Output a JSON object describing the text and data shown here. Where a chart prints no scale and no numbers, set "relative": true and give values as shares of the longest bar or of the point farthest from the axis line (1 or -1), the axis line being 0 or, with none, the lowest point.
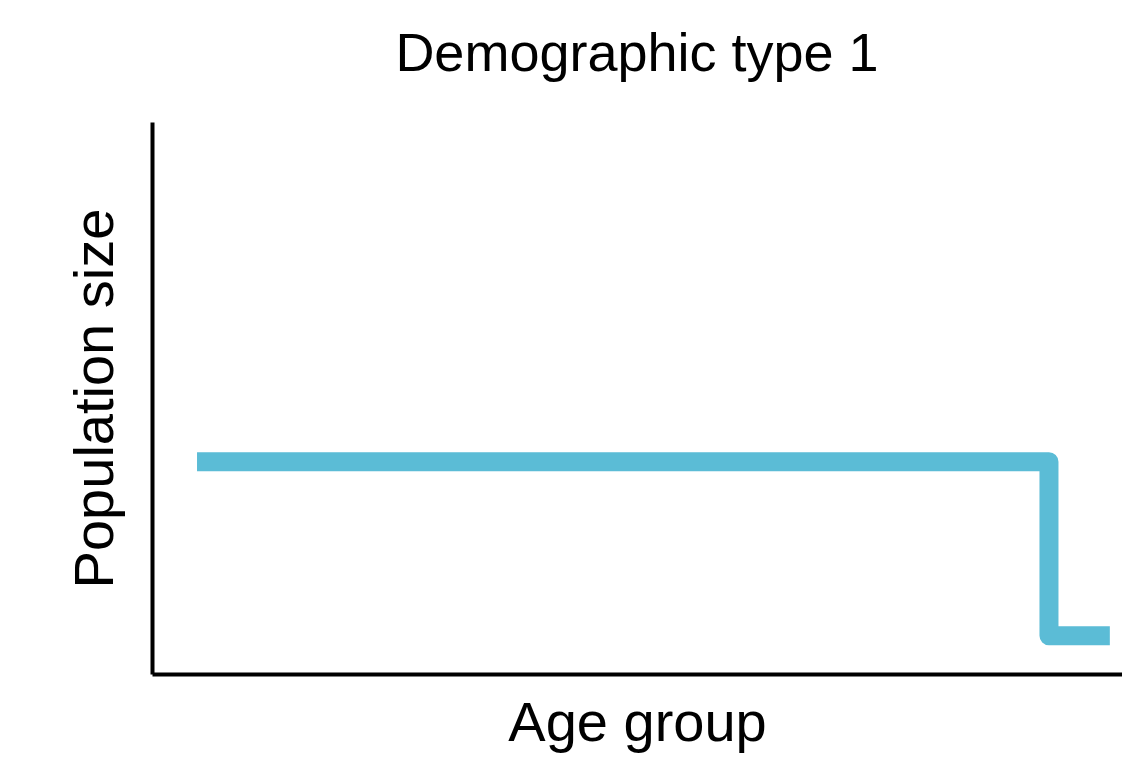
{
  "chart_data": {
    "type": "step",
    "title": "Demographic type 1",
    "xlabel": "Age group",
    "ylabel": "Population size",
    "relative": true,
    "marker": "none",
    "categories": [
      null,
      null,
      null,
      null,
      null,
      null,
      null,
      null,
      null,
      null,
      null,
      null,
      null,
      null,
      null,
      null
    ],
    "series": [
      {
        "color": "#5bbcd6",
        "values": [
          1,
          1,
          1,
          1,
          1,
          1,
          1,
          1,
          1,
          1,
          1,
          1,
          1,
          1,
          0.18,
          0.18
        ]
      }
    ]
  }
}
